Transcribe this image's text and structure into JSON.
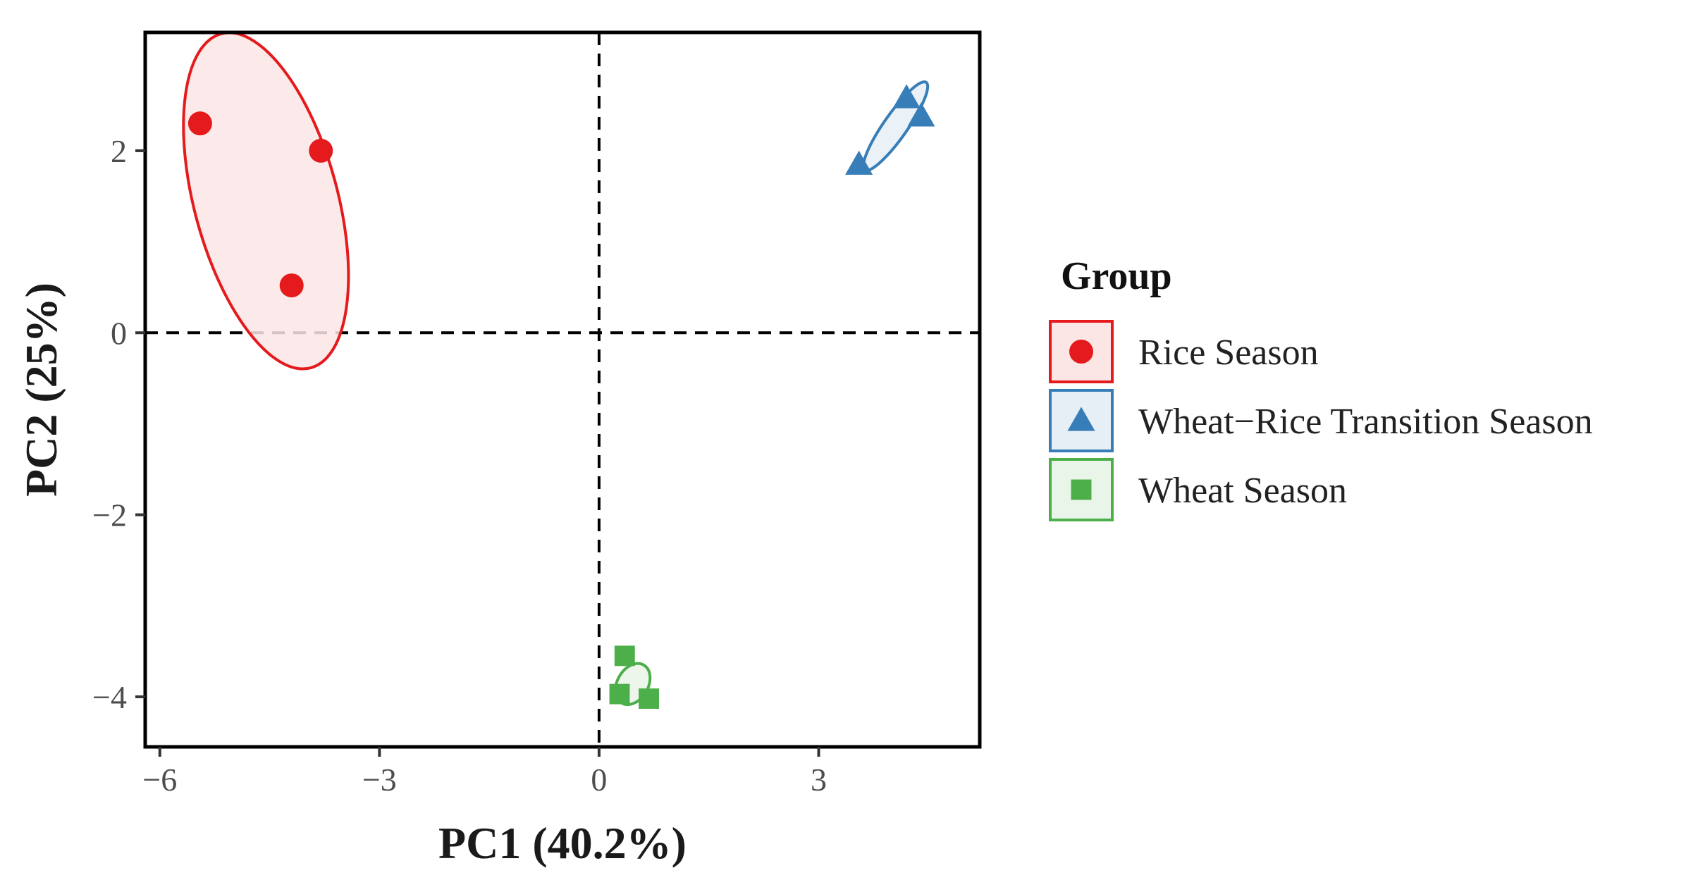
{
  "chart_data": {
    "type": "scatter",
    "xlabel": "PC1 (40.2%)",
    "ylabel": "PC2 (25%)",
    "xlim": [
      -6.2,
      5.2
    ],
    "ylim": [
      -4.55,
      3.3
    ],
    "xticks": [
      -6,
      -3,
      0,
      3
    ],
    "xtick_labels": [
      "−6",
      "−3",
      "0",
      "3"
    ],
    "yticks": [
      2,
      0,
      -2,
      -4
    ],
    "ytick_labels": [
      "2",
      "0",
      "−2",
      "−4"
    ],
    "reference_lines": {
      "x": 0,
      "y": 0,
      "style": "dashed"
    },
    "grid": false,
    "legend": {
      "title": "Group",
      "placement": "right"
    },
    "series": [
      {
        "name": "Rice Season",
        "marker": "circle",
        "color": "#e41a1c",
        "fill": "#fbe5e5",
        "points": [
          {
            "x": -5.45,
            "y": 2.3
          },
          {
            "x": -3.8,
            "y": 2.0
          },
          {
            "x": -4.2,
            "y": 0.52
          }
        ],
        "ellipse": {
          "cx": -4.55,
          "cy": 1.45,
          "rx": 0.98,
          "ry": 1.9,
          "rotation_deg": -15
        }
      },
      {
        "name": "Wheat−Rice Transition Season",
        "marker": "triangle",
        "color": "#377eb8",
        "fill": "#e6eef6",
        "points": [
          {
            "x": 4.2,
            "y": 2.58
          },
          {
            "x": 4.4,
            "y": 2.38
          },
          {
            "x": 3.55,
            "y": 1.85
          }
        ],
        "ellipse": {
          "cx": 4.05,
          "cy": 2.27,
          "rx": 0.73,
          "ry": 0.13,
          "rotation_deg": -55
        }
      },
      {
        "name": "Wheat Season",
        "marker": "square",
        "color": "#4daf4a",
        "fill": "#e9f5e8",
        "points": [
          {
            "x": 0.35,
            "y": -3.55
          },
          {
            "x": 0.28,
            "y": -3.97
          },
          {
            "x": 0.68,
            "y": -4.02
          }
        ],
        "ellipse": {
          "cx": 0.46,
          "cy": -3.86,
          "rx": 0.3,
          "ry": 0.17,
          "rotation_deg": -60
        }
      }
    ]
  }
}
